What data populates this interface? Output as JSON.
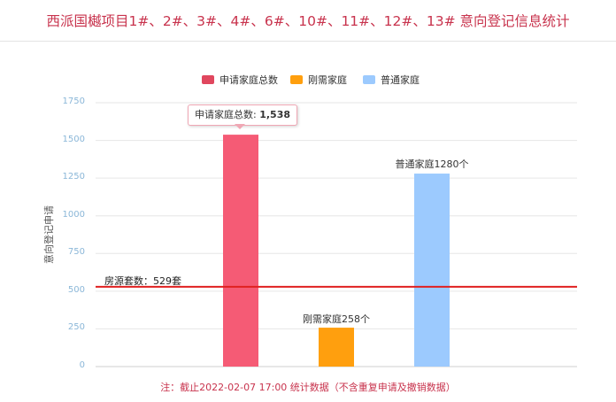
{
  "header": {
    "title": "西派国樾项目1#、2#、3#、4#、6#、10#、11#、12#、13# 意向登记信息统计"
  },
  "chart_data": {
    "type": "bar",
    "categories": [
      "申请家庭总数",
      "刚需家庭",
      "普通家庭"
    ],
    "series": [
      {
        "name": "申请家庭总数",
        "values": [
          1538,
          null,
          null
        ],
        "color": "#f55b75"
      },
      {
        "name": "刚需家庭",
        "values": [
          null,
          258,
          null
        ],
        "color": "#ff9f0e"
      },
      {
        "name": "普通家庭",
        "values": [
          null,
          null,
          1280
        ],
        "color": "#9ccafe"
      }
    ],
    "ylabel": "意向登记申请",
    "ylim": [
      0,
      1750
    ],
    "yticks": [
      0,
      250,
      500,
      750,
      1000,
      1250,
      1500,
      1750
    ],
    "grid": true,
    "legend_position": "top",
    "reference_line": {
      "value": 529,
      "label": "房源套数：529套",
      "color": "#e02020"
    },
    "data_labels": [
      "刚需家庭258个",
      "普通家庭1280个"
    ],
    "tooltip": {
      "label": "申请家庭总数: ",
      "value": "1,538"
    }
  },
  "footnote": "注：截止2022-02-07 17:00 统计数据（不含重复申请及撤销数据）"
}
